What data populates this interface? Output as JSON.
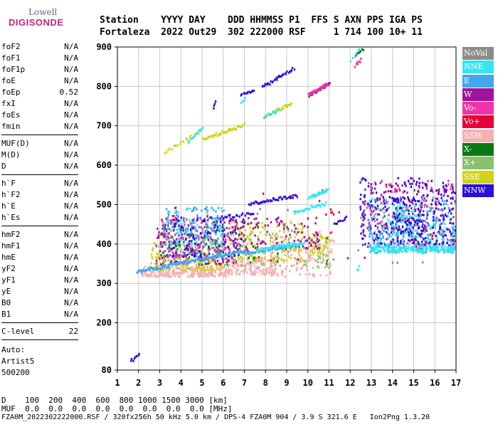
{
  "logo": {
    "line1": "Lowell",
    "line2": "DIGISONDE"
  },
  "header": {
    "row1": "Station    YYYY DAY    DDD HHMMSS P1  FFS S AXN PPS IGA PS",
    "row2": "Fortaleza  2022 Out29  302 222000 RSF     1 714 100 10+ 11"
  },
  "params": {
    "group1": [
      {
        "name": "foF2",
        "value": "N/A"
      },
      {
        "name": "foF1",
        "value": "N/A"
      },
      {
        "name": "foF1p",
        "value": "N/A"
      },
      {
        "name": "foE",
        "value": "N/A"
      },
      {
        "name": "foEp",
        "value": "0.52"
      },
      {
        "name": "fxI",
        "value": "N/A"
      },
      {
        "name": "foEs",
        "value": "N/A"
      },
      {
        "name": "fmin",
        "value": "N/A"
      }
    ],
    "group2": [
      {
        "name": "MUF(D)",
        "value": "N/A"
      },
      {
        "name": "M(D)",
        "value": "N/A"
      },
      {
        "name": "D",
        "value": "N/A"
      }
    ],
    "group3": [
      {
        "name": "h`F",
        "value": "N/A"
      },
      {
        "name": "h`F2",
        "value": "N/A"
      },
      {
        "name": "h`E",
        "value": "N/A"
      },
      {
        "name": "h`Es",
        "value": "N/A"
      }
    ],
    "group4": [
      {
        "name": "hmF2",
        "value": "N/A"
      },
      {
        "name": "hmF1",
        "value": "N/A"
      },
      {
        "name": "hmE",
        "value": "N/A"
      },
      {
        "name": "yF2",
        "value": "N/A"
      },
      {
        "name": "yF1",
        "value": "N/A"
      },
      {
        "name": "yE",
        "value": "N/A"
      },
      {
        "name": "B0",
        "value": "N/A"
      },
      {
        "name": "B1",
        "value": "N/A"
      }
    ],
    "group5": [
      {
        "name": "C-level",
        "value": "22"
      }
    ],
    "auto": [
      "Auto:",
      "Artist5",
      "500200"
    ]
  },
  "legend": [
    {
      "label": "NoVal",
      "color": "#8c8c8c"
    },
    {
      "label": "NNE",
      "color": "#33e6f2"
    },
    {
      "label": "E",
      "color": "#3fa8f0"
    },
    {
      "label": "W",
      "color": "#a0149c"
    },
    {
      "label": "Vo-",
      "color": "#f033a8"
    },
    {
      "label": "Vo+",
      "color": "#e6003a"
    },
    {
      "label": "SSW",
      "color": "#f5b0b0"
    },
    {
      "label": "X-",
      "color": "#0a7a14"
    },
    {
      "label": "X+",
      "color": "#8cc06e"
    },
    {
      "label": "SSE",
      "color": "#d2d21e"
    },
    {
      "label": "NNW",
      "color": "#2a10d8"
    }
  ],
  "footer": {
    "line1": "D    100  200  400  600  800 1000 1500 3000 [km]",
    "line2": "MUF  0.0  0.0  0.0  0.0  0.0  0.0  0.0  0.0 [MHz]",
    "line3": "FZA0M_2022302222000.RSF / 320fx256h 50 kHz 5.0 km / DPS-4 FZA0M 904 / 3.9 S 321.6 E   Ion2Png 1.3.20"
  },
  "chart_data": {
    "type": "scatter",
    "xlim": [
      1,
      17
    ],
    "ylim": [
      80,
      900
    ],
    "xticks": [
      1,
      2,
      3,
      4,
      5,
      6,
      7,
      8,
      9,
      10,
      11,
      12,
      13,
      14,
      15,
      16,
      17
    ],
    "yticks": [
      80,
      200,
      300,
      400,
      500,
      600,
      700,
      800,
      900
    ],
    "grid": true,
    "clusters": [
      {
        "mode": "SSW",
        "x": [
          2.1,
          6.2
        ],
        "y": [
          320,
          345
        ],
        "n": 260
      },
      {
        "mode": "SSW",
        "x": [
          6.2,
          8.5
        ],
        "y": [
          325,
          370
        ],
        "n": 160
      },
      {
        "mode": "SSW",
        "x": [
          8.2,
          11.2
        ],
        "y": [
          320,
          440
        ],
        "n": 140
      },
      {
        "mode": "SSE",
        "x": [
          2.5,
          6.0
        ],
        "y": [
          335,
          410
        ],
        "n": 170
      },
      {
        "mode": "SSE",
        "x": [
          6.2,
          9.8
        ],
        "y": [
          360,
          460
        ],
        "n": 170
      },
      {
        "mode": "SSE",
        "x": [
          10.0,
          11.0
        ],
        "y": [
          370,
          430
        ],
        "n": 60
      },
      {
        "mode": "W",
        "x": [
          2.8,
          6.6
        ],
        "y": [
          350,
          470
        ],
        "n": 200
      },
      {
        "mode": "W",
        "x": [
          6.5,
          10.5
        ],
        "y": [
          390,
          470
        ],
        "n": 90
      },
      {
        "mode": "W",
        "x": [
          12.5,
          17.0
        ],
        "y": [
          390,
          560
        ],
        "n": 200
      },
      {
        "mode": "Vo-",
        "x": [
          3.0,
          6.8
        ],
        "y": [
          360,
          470
        ],
        "n": 140
      },
      {
        "mode": "Vo-",
        "x": [
          12.6,
          17.0
        ],
        "y": [
          400,
          570
        ],
        "n": 100
      },
      {
        "mode": "E",
        "x": [
          3.0,
          6.0
        ],
        "y": [
          370,
          495
        ],
        "n": 150
      },
      {
        "mode": "E",
        "x": [
          12.8,
          17.0
        ],
        "y": [
          380,
          520
        ],
        "n": 220
      },
      {
        "mode": "NNE",
        "x": [
          3.3,
          6.0
        ],
        "y": [
          400,
          495
        ],
        "n": 90
      },
      {
        "mode": "NNE",
        "x": [
          13.0,
          17.0
        ],
        "y": [
          380,
          480
        ],
        "n": 160
      },
      {
        "mode": "NNW",
        "x": [
          3.5,
          7.0
        ],
        "y": [
          370,
          470
        ],
        "n": 110
      },
      {
        "mode": "NNW",
        "x": [
          12.4,
          17.0
        ],
        "y": [
          400,
          570
        ],
        "n": 220
      },
      {
        "mode": "X+",
        "x": [
          2.8,
          11.0
        ],
        "y": [
          340,
          430
        ],
        "n": 90
      },
      {
        "mode": "X-",
        "x": [
          3.0,
          11.0
        ],
        "y": [
          350,
          450
        ],
        "n": 50
      },
      {
        "mode": "Vo+",
        "x": [
          3.0,
          16.5
        ],
        "y": [
          360,
          540
        ],
        "n": 60
      },
      {
        "mode": "NoVal",
        "x": [
          3.0,
          16.5
        ],
        "y": [
          350,
          500
        ],
        "n": 40
      }
    ],
    "traces": [
      {
        "mode": "E",
        "x0": 1.9,
        "y0": 332,
        "x1": 7.0,
        "y1": 385,
        "n": 120
      },
      {
        "mode": "E",
        "x0": 7.0,
        "y0": 380,
        "x1": 9.5,
        "y1": 400,
        "n": 60
      },
      {
        "mode": "NNE",
        "x0": 7.6,
        "y0": 388,
        "x1": 9.8,
        "y1": 405,
        "n": 50
      },
      {
        "mode": "NNW",
        "x0": 7.2,
        "y0": 505,
        "x1": 9.4,
        "y1": 525,
        "n": 40
      },
      {
        "mode": "NNE",
        "x0": 10.0,
        "y0": 520,
        "x1": 10.9,
        "y1": 540,
        "n": 25
      },
      {
        "mode": "NNE",
        "x0": 9.3,
        "y0": 483,
        "x1": 10.8,
        "y1": 505,
        "n": 25
      },
      {
        "mode": "NNW",
        "x0": 5.8,
        "y0": 470,
        "x1": 7.4,
        "y1": 480,
        "n": 20
      },
      {
        "mode": "SSE",
        "x0": 3.2,
        "y0": 635,
        "x1": 4.9,
        "y1": 690,
        "n": 20
      },
      {
        "mode": "SSE",
        "x0": 5.0,
        "y0": 668,
        "x1": 7.0,
        "y1": 706,
        "n": 45
      },
      {
        "mode": "NNE",
        "x0": 4.3,
        "y0": 660,
        "x1": 5.0,
        "y1": 700,
        "n": 12
      },
      {
        "mode": "SSE",
        "x0": 7.9,
        "y0": 725,
        "x1": 9.2,
        "y1": 760,
        "n": 30
      },
      {
        "mode": "NNE",
        "x0": 7.9,
        "y0": 727,
        "x1": 8.6,
        "y1": 740,
        "n": 12
      },
      {
        "mode": "NNW",
        "x0": 6.8,
        "y0": 780,
        "x1": 7.4,
        "y1": 795,
        "n": 12
      },
      {
        "mode": "NNW",
        "x0": 7.8,
        "y0": 800,
        "x1": 9.3,
        "y1": 848,
        "n": 30
      },
      {
        "mode": "W",
        "x0": 10.0,
        "y0": 780,
        "x1": 11.0,
        "y1": 810,
        "n": 40
      },
      {
        "mode": "Vo-",
        "x0": 10.0,
        "y0": 782,
        "x1": 10.9,
        "y1": 808,
        "n": 20
      },
      {
        "mode": "NNW",
        "x0": 5.5,
        "y0": 748,
        "x1": 5.6,
        "y1": 765,
        "n": 4
      },
      {
        "mode": "NNE",
        "x0": 6.8,
        "y0": 758,
        "x1": 7.0,
        "y1": 770,
        "n": 4
      },
      {
        "mode": "NNW",
        "x0": 1.6,
        "y0": 105,
        "x1": 2.0,
        "y1": 120,
        "n": 8
      },
      {
        "mode": "X-",
        "x0": 12.2,
        "y0": 880,
        "x1": 12.6,
        "y1": 900,
        "n": 10
      },
      {
        "mode": "Vo-",
        "x0": 12.2,
        "y0": 855,
        "x1": 12.5,
        "y1": 870,
        "n": 8
      },
      {
        "mode": "NNE",
        "x0": 12.0,
        "y0": 866,
        "x1": 12.4,
        "y1": 900,
        "n": 6
      },
      {
        "mode": "NNW",
        "x0": 11.2,
        "y0": 452,
        "x1": 11.8,
        "y1": 470,
        "n": 10
      },
      {
        "mode": "NNE",
        "x0": 12.9,
        "y0": 512,
        "x1": 13.0,
        "y1": 520,
        "n": 3
      },
      {
        "mode": "NNE",
        "x0": 12.3,
        "y0": 335,
        "x1": 12.4,
        "y1": 345,
        "n": 3
      }
    ],
    "bands": [
      {
        "mode": "NNE",
        "x0": 12.9,
        "x1": 17.0,
        "y0": 383,
        "y1": 397
      },
      {
        "mode": "NNE",
        "x0": 14.0,
        "x1": 15.2,
        "y0": 420,
        "y1": 500
      },
      {
        "mode": "NNW",
        "x0": 14.0,
        "x1": 15.5,
        "y0": 430,
        "y1": 520
      }
    ]
  }
}
